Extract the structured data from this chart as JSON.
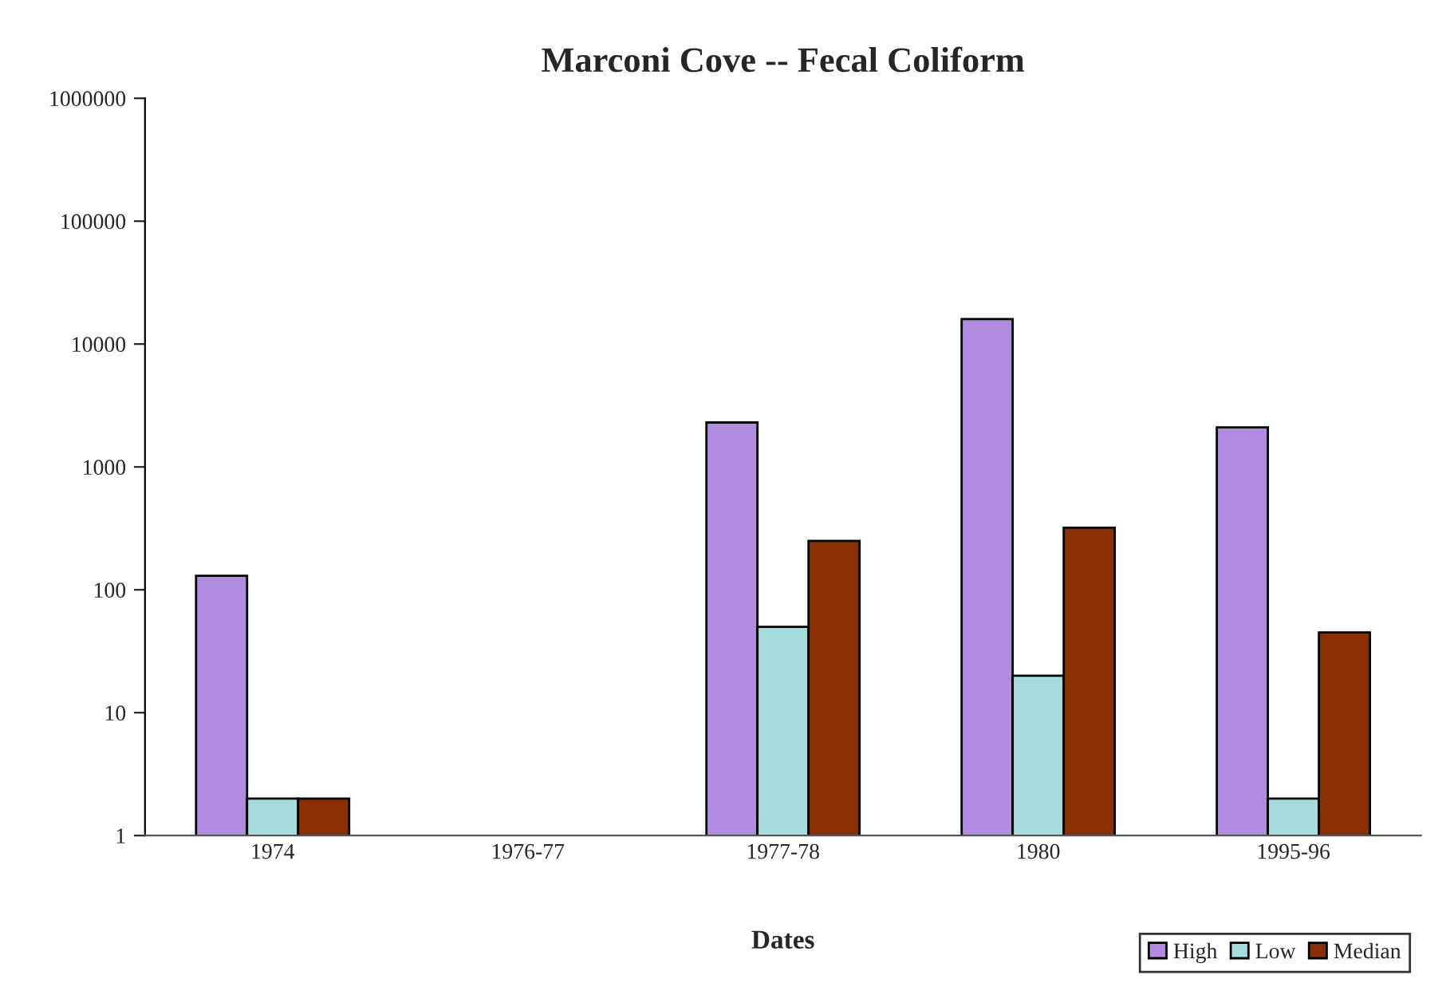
{
  "chart_data": {
    "type": "bar",
    "title": "Marconi Cove -- Fecal Coliform",
    "xlabel": "Dates",
    "categories": [
      "1974",
      "1976-77",
      "1977-78",
      "1980",
      "1995-96"
    ],
    "series": [
      {
        "name": "High",
        "color": "#b08ce0",
        "values": [
          130,
          null,
          2300,
          16000,
          2100
        ]
      },
      {
        "name": "Low",
        "color": "#a6dcdc",
        "values": [
          2,
          null,
          50,
          20,
          2
        ]
      },
      {
        "name": "Median",
        "color": "#8a2e05",
        "values": [
          2,
          null,
          250,
          320,
          45
        ]
      }
    ],
    "log": "y",
    "ylim": [
      1,
      1000000
    ],
    "yticks": [
      1,
      10,
      100,
      1000,
      10000,
      100000,
      1000000
    ],
    "grid": false,
    "legend": "bottom right"
  }
}
